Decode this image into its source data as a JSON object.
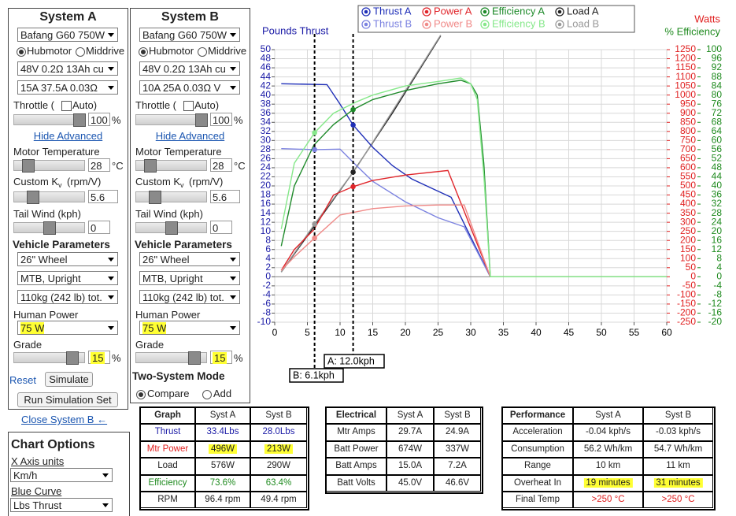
{
  "system_a": {
    "title": "System A",
    "motor": "Bafang G60 750W",
    "motor_type": [
      "Hubmotor",
      "Middrive"
    ],
    "battery": "48V 0.2Ω 13Ah cu",
    "controller": "15A 37.5A 0.03Ω",
    "throttle_label": "Throttle (",
    "auto": "Auto)",
    "throttle": 100,
    "pct": "%",
    "hide_advanced": "Hide Advanced",
    "motor_temp_label": "Motor Temperature",
    "motor_temp": 28,
    "celsius": "°C",
    "kv_label": "Custom K",
    "kv_sub": "v",
    "kv_unit": "(rpm/V)",
    "kv": 5.6,
    "tailwind_label": "Tail Wind (kph)",
    "tailwind": 0,
    "vehicle_params": "Vehicle Parameters",
    "wheel": "26\" Wheel",
    "frame": "MTB, Upright",
    "weight": "110kg (242 lb) tot.",
    "human_power_label": "Human Power",
    "human_power": "75 W",
    "grade_label": "Grade",
    "grade": 15,
    "reset": "Reset",
    "simulate": "Simulate",
    "run_set": "Run Simulation Set",
    "close_b": "Close System B ←"
  },
  "system_b": {
    "title": "System B",
    "motor": "Bafang G60 750W",
    "motor_type": [
      "Hubmotor",
      "Middrive"
    ],
    "battery": "48V 0.2Ω 13Ah cu",
    "controller": "10A 25A 0.03Ω V",
    "throttle_label": "Throttle (",
    "auto": "Auto)",
    "throttle": 100,
    "pct": "%",
    "hide_advanced": "Hide Advanced",
    "motor_temp_label": "Motor Temperature",
    "motor_temp": 28,
    "celsius": "°C",
    "kv_label": "Custom K",
    "kv_sub": "v",
    "kv_unit": "(rpm/V)",
    "kv": 5.6,
    "tailwind_label": "Tail Wind (kph)",
    "tailwind": 0,
    "vehicle_params": "Vehicle Parameters",
    "wheel": "26\" Wheel",
    "frame": "MTB, Upright",
    "weight": "110kg (242 lb) tot.",
    "human_power_label": "Human Power",
    "human_power": "75 W",
    "grade_label": "Grade",
    "grade": 15,
    "two_system": "Two-System Mode",
    "compare": "Compare",
    "add": "Add"
  },
  "chart_options": {
    "title": "Chart Options",
    "x_units_label": "X Axis units",
    "x_units": "Km/h",
    "blue_curve_label": "Blue Curve",
    "blue_curve": "Lbs Thrust"
  },
  "chart_data": {
    "type": "line",
    "y_label": "Pounds Thrust",
    "y2_label": "Watts",
    "y3_label": "% Efficiency",
    "y_color": "#1a1aa6",
    "y2_color": "#e02020",
    "y3_color": "#1e8a1e",
    "grid": true,
    "xlim": [
      0,
      60
    ],
    "xticks": [
      0,
      5,
      10,
      15,
      20,
      25,
      30,
      35,
      40,
      45,
      50,
      55,
      60
    ],
    "ylim": [
      -10,
      50
    ],
    "yticks": [
      -10,
      -8,
      -6,
      -4,
      -2,
      0,
      2,
      4,
      6,
      8,
      10,
      12,
      14,
      16,
      18,
      20,
      22,
      24,
      26,
      28,
      30,
      32,
      34,
      36,
      38,
      40,
      42,
      44,
      46,
      48,
      50
    ],
    "y2lim": [
      -250,
      1250
    ],
    "y2ticks": [
      -250,
      -200,
      -150,
      -100,
      -50,
      0,
      50,
      100,
      150,
      200,
      250,
      300,
      350,
      400,
      450,
      500,
      550,
      600,
      650,
      700,
      750,
      800,
      850,
      900,
      950,
      1000,
      1050,
      1100,
      1150,
      1200,
      1250
    ],
    "y3lim": [
      -20,
      100
    ],
    "y3ticks": [
      -20,
      -16,
      -12,
      -8,
      -4,
      0,
      4,
      8,
      12,
      16,
      20,
      24,
      28,
      32,
      36,
      40,
      44,
      48,
      52,
      56,
      60,
      64,
      68,
      72,
      76,
      80,
      84,
      88,
      92,
      96,
      100
    ],
    "series": [
      {
        "name": "Thrust A",
        "color": "#1f2fb8",
        "axis": "y",
        "x": [
          1,
          8,
          10,
          12,
          15,
          18,
          21,
          24,
          27,
          33,
          60
        ],
        "values": [
          42.5,
          42.3,
          38,
          33.4,
          28.5,
          24.5,
          21.5,
          19.5,
          17.5,
          0,
          0
        ]
      },
      {
        "name": "Thrust B",
        "color": "#7b82e0",
        "axis": "y",
        "x": [
          1,
          6.1,
          10,
          12.5,
          15,
          20,
          25,
          29,
          33,
          60
        ],
        "values": [
          28.2,
          28,
          28.1,
          24.5,
          21,
          16.5,
          13,
          11,
          0,
          0
        ]
      },
      {
        "name": "Power A",
        "color": "#e0262b",
        "axis": "y2",
        "x": [
          1,
          3,
          6,
          9,
          12,
          15,
          20,
          26.5,
          33,
          60
        ],
        "values": [
          35,
          150,
          260,
          450,
          496,
          530,
          560,
          585,
          0,
          0
        ]
      },
      {
        "name": "Power B",
        "color": "#f08a88",
        "axis": "y2",
        "x": [
          1,
          3,
          6.1,
          10,
          15,
          20,
          25,
          29,
          33,
          60
        ],
        "values": [
          35,
          110,
          213,
          340,
          375,
          390,
          395,
          395,
          0,
          0
        ]
      },
      {
        "name": "Efficiency A",
        "color": "#1e8a2a",
        "axis": "y3",
        "x": [
          1,
          3,
          6,
          9,
          12,
          15,
          20,
          25,
          28.5,
          30,
          31,
          32,
          33,
          60
        ],
        "values": [
          13.5,
          40,
          58,
          67,
          73.6,
          78,
          82,
          85,
          86.5,
          85,
          80,
          50,
          0,
          0
        ]
      },
      {
        "name": "Efficiency B",
        "color": "#86e88a",
        "axis": "y3",
        "x": [
          1,
          3,
          6.1,
          9,
          12.5,
          15,
          20,
          25,
          28.5,
          30,
          31,
          32,
          33,
          60
        ],
        "values": [
          21,
          50,
          63.4,
          72,
          77,
          80,
          84,
          86,
          87.5,
          85,
          78,
          45,
          0,
          0
        ]
      },
      {
        "name": "Load A",
        "color": "#222222",
        "axis": "y2",
        "x": [
          1,
          6,
          12,
          18,
          25.4
        ],
        "values": [
          26,
          275,
          576,
          900,
          1326
        ]
      },
      {
        "name": "Load B",
        "color": "#999999",
        "axis": "y2",
        "x": [
          1,
          6.1,
          12.5,
          18,
          25.4
        ],
        "values": [
          26,
          290,
          600,
          910,
          1330
        ]
      }
    ],
    "cursors": [
      {
        "value": 12,
        "label": "A: 12.0kph"
      },
      {
        "value": 6.1,
        "label": "B: 6.1kph"
      }
    ]
  },
  "graph_table": {
    "header": [
      "Graph",
      "Syst A",
      "Syst B"
    ],
    "rows": [
      [
        "Thrust",
        "33.4Lbs",
        "28.0Lbs"
      ],
      [
        "Mtr Power",
        "496W",
        "213W"
      ],
      [
        "Load",
        "576W",
        "290W"
      ],
      [
        "Efficiency",
        "73.6%",
        "63.4%"
      ],
      [
        "RPM",
        "96.4 rpm",
        "49.4 rpm"
      ]
    ]
  },
  "electrical_table": {
    "header": [
      "Electrical",
      "Syst A",
      "Syst B"
    ],
    "rows": [
      [
        "Mtr Amps",
        "29.7A",
        "24.9A"
      ],
      [
        "Batt Power",
        "674W",
        "337W"
      ],
      [
        "Batt Amps",
        "15.0A",
        "7.2A"
      ],
      [
        "Batt Volts",
        "45.0V",
        "46.6V"
      ]
    ]
  },
  "performance_table": {
    "header": [
      "Performance",
      "Syst A",
      "Syst B"
    ],
    "rows": [
      [
        "Acceleration",
        "-0.04 kph/s",
        "-0.03 kph/s"
      ],
      [
        "Consumption",
        "56.2 Wh/km",
        "54.7 Wh/km"
      ],
      [
        "Range",
        "10 km",
        "11 km"
      ],
      [
        "Overheat In",
        "19 minutes",
        "31 minutes"
      ],
      [
        "Final Temp",
        ">250 °C",
        ">250 °C"
      ]
    ]
  }
}
